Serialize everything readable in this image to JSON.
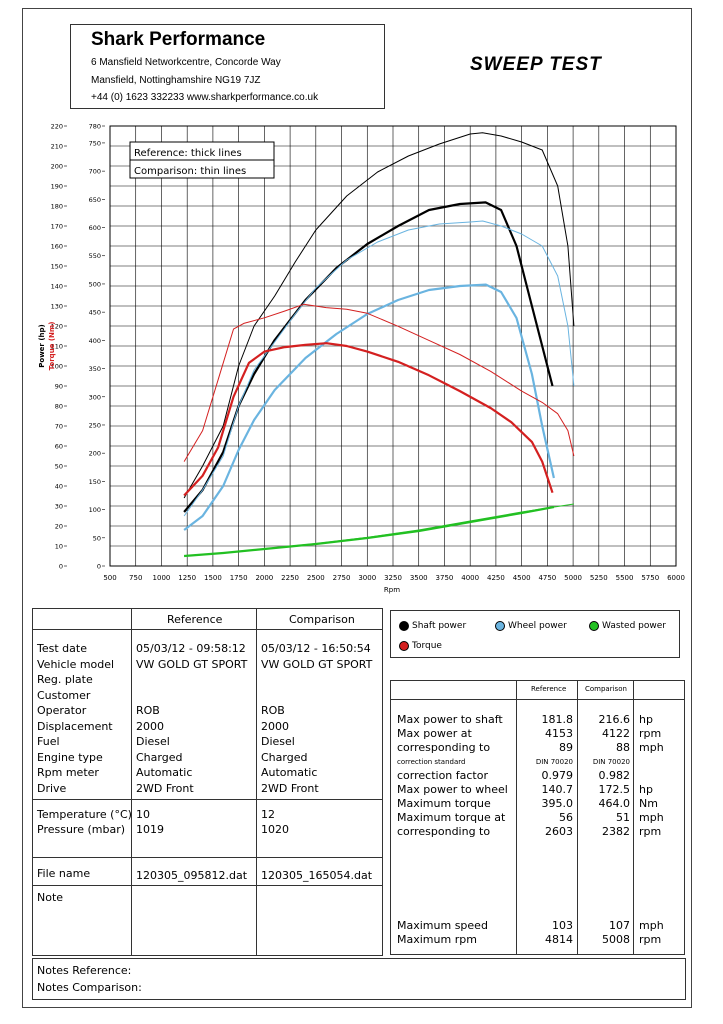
{
  "header": {
    "company": "Shark Performance",
    "address1": "6 Mansfield Networkcentre, Concorde Way",
    "address2": "Mansfield, Nottinghamshire NG19 7JZ",
    "contact": "+44 (0) 1623 332233 www.sharkperformance.co.uk",
    "report_title": "SWEEP TEST"
  },
  "chart_note": {
    "reference": "Reference: thick lines",
    "comparison": "Comparison: thin lines"
  },
  "chart_data": {
    "type": "line",
    "xlabel": "Rpm",
    "ylabel_power": "Power (hp)",
    "ylabel_torque": "Torque (Nm)",
    "xlim": [
      500,
      6000
    ],
    "power_ylim": [
      0,
      220
    ],
    "torque_ylim": [
      0,
      780
    ],
    "x_ticks": [
      500,
      750,
      1000,
      1250,
      1500,
      1750,
      2000,
      2250,
      2500,
      2750,
      3000,
      3250,
      3500,
      3750,
      4000,
      4250,
      4500,
      4750,
      5000,
      5250,
      5500,
      5750,
      6000
    ],
    "power_ticks": [
      0,
      10,
      20,
      30,
      40,
      50,
      60,
      70,
      80,
      90,
      100,
      110,
      120,
      130,
      140,
      150,
      160,
      170,
      180,
      190,
      200,
      210,
      220
    ],
    "torque_ticks": [
      0,
      50,
      100,
      150,
      200,
      250,
      300,
      350,
      400,
      450,
      500,
      550,
      600,
      650,
      700,
      750,
      780
    ],
    "series": [
      {
        "name": "Shaft power",
        "axis": "power",
        "style": "thick",
        "color": "#000000",
        "x": [
          1220,
          1400,
          1600,
          1750,
          1900,
          2100,
          2400,
          2700,
          3000,
          3300,
          3600,
          3900,
          4150,
          4300,
          4450,
          4600,
          4700,
          4800
        ],
        "y": [
          27,
          38,
          57,
          80,
          96,
          113,
          133,
          149,
          161,
          170,
          178,
          181,
          181.8,
          178,
          160,
          130,
          110,
          90
        ]
      },
      {
        "name": "Shaft power",
        "axis": "power",
        "style": "thin",
        "color": "#000000",
        "x": [
          1220,
          1400,
          1600,
          1750,
          1900,
          2100,
          2300,
          2500,
          2800,
          3100,
          3400,
          3700,
          4000,
          4120,
          4300,
          4500,
          4700,
          4850,
          4950,
          5008
        ],
        "y": [
          34,
          50,
          70,
          100,
          120,
          135,
          152,
          168,
          185,
          197,
          205,
          211,
          216,
          216.6,
          215,
          212,
          208,
          190,
          160,
          120
        ]
      },
      {
        "name": "Wheel power",
        "axis": "power",
        "style": "thick",
        "color": "#6ab4e0",
        "x": [
          1220,
          1400,
          1600,
          1750,
          1900,
          2100,
          2400,
          2700,
          3000,
          3300,
          3600,
          3900,
          4153,
          4300,
          4450,
          4600,
          4700,
          4814
        ],
        "y": [
          18,
          25,
          40,
          58,
          73,
          88,
          104,
          116,
          126,
          133,
          138,
          140,
          140.7,
          137,
          124,
          96,
          70,
          44
        ]
      },
      {
        "name": "Wheel power",
        "axis": "power",
        "style": "thin",
        "color": "#6ab4e0",
        "x": [
          1220,
          1400,
          1600,
          1750,
          1900,
          2100,
          2300,
          2500,
          2800,
          3100,
          3400,
          3700,
          4000,
          4122,
          4300,
          4500,
          4700,
          4850,
          4950,
          5008
        ],
        "y": [
          25,
          38,
          55,
          80,
          98,
          112,
          126,
          139,
          153,
          162,
          168,
          171,
          172,
          172.5,
          170,
          166,
          160,
          145,
          120,
          90
        ]
      },
      {
        "name": "Wasted power",
        "axis": "power",
        "style": "thick",
        "color": "#22c022",
        "x": [
          1220,
          1600,
          2000,
          2500,
          3000,
          3500,
          4000,
          4500,
          4814
        ],
        "y": [
          5,
          6.5,
          8.5,
          11,
          14,
          17.5,
          22,
          26.5,
          29.5
        ]
      },
      {
        "name": "Wasted power",
        "axis": "power",
        "style": "thin",
        "color": "#22c022",
        "x": [
          1220,
          1600,
          2000,
          2500,
          3000,
          3500,
          4000,
          4500,
          5008
        ],
        "y": [
          5,
          6.5,
          8.6,
          11.2,
          14.3,
          18,
          22.5,
          27,
          31
        ]
      },
      {
        "name": "Torque",
        "axis": "torque",
        "style": "thick",
        "color": "#d42020",
        "x": [
          1220,
          1400,
          1550,
          1700,
          1850,
          2000,
          2200,
          2400,
          2603,
          2800,
          3000,
          3300,
          3600,
          3900,
          4200,
          4400,
          4600,
          4700,
          4800
        ],
        "y": [
          125,
          160,
          210,
          300,
          360,
          380,
          388,
          392,
          395,
          390,
          380,
          362,
          338,
          310,
          280,
          255,
          220,
          185,
          130
        ]
      },
      {
        "name": "Torque",
        "axis": "torque",
        "style": "thin",
        "color": "#d42020",
        "x": [
          1220,
          1400,
          1550,
          1700,
          1800,
          2000,
          2200,
          2382,
          2600,
          2800,
          3000,
          3300,
          3600,
          3900,
          4200,
          4500,
          4700,
          4850,
          4950,
          5008
        ],
        "y": [
          185,
          240,
          330,
          420,
          430,
          440,
          452,
          464,
          458,
          455,
          448,
          425,
          400,
          375,
          345,
          310,
          290,
          270,
          240,
          195
        ]
      }
    ]
  },
  "legend": {
    "shaft": "Shaft power",
    "wheel": "Wheel power",
    "wasted": "Wasted power",
    "torque": "Torque",
    "colors": {
      "shaft": "#000000",
      "wheel": "#6ab4e0",
      "wasted": "#22c022",
      "torque": "#d42020"
    }
  },
  "info_table": {
    "col_reference": "Reference",
    "col_comparison": "Comparison",
    "labels": [
      "Test date",
      "Vehicle model",
      "Reg. plate",
      "Customer",
      "Operator",
      "Displacement",
      "Fuel",
      "Engine type",
      "Rpm meter",
      "Drive"
    ],
    "reference": [
      "05/03/12 - 09:58:12",
      "VW GOLD GT SPORT",
      "",
      "",
      "ROB",
      "2000",
      "Diesel",
      "Charged",
      "Automatic",
      "2WD Front"
    ],
    "comparison": [
      "05/03/12 - 16:50:54",
      "VW GOLD GT SPORT",
      "",
      "",
      "ROB",
      "2000",
      "Diesel",
      "Charged",
      "Automatic",
      "2WD Front"
    ],
    "env_labels": [
      "Temperature (°C)",
      "Pressure (mbar)"
    ],
    "env_reference": [
      "10",
      "1019"
    ],
    "env_comparison": [
      "12",
      "1020"
    ],
    "file_label": "File name",
    "file_reference": "120305_095812.dat",
    "file_comparison": "120305_165054.dat",
    "note_label": "Note"
  },
  "results": {
    "col_reference": "Reference",
    "col_comparison": "Comparison",
    "rows": [
      {
        "label": "Max power to shaft",
        "ref": "181.8",
        "cmp": "216.6",
        "unit": "hp"
      },
      {
        "label": "Max power at",
        "ref": "4153",
        "cmp": "4122",
        "unit": "rpm"
      },
      {
        "label": "corresponding to",
        "ref": "89",
        "cmp": "88",
        "unit": "mph"
      },
      {
        "label": "correction standard",
        "ref": "DIN 70020",
        "cmp": "DIN 70020",
        "unit": "",
        "small": true
      },
      {
        "label": "correction factor",
        "ref": "0.979",
        "cmp": "0.982",
        "unit": ""
      },
      {
        "label": "Max power to wheel",
        "ref": "140.7",
        "cmp": "172.5",
        "unit": "hp"
      },
      {
        "label": "Maximum torque",
        "ref": "395.0",
        "cmp": "464.0",
        "unit": "Nm"
      },
      {
        "label": "Maximum torque at",
        "ref": "56",
        "cmp": "51",
        "unit": "mph"
      },
      {
        "label": "corresponding to",
        "ref": "2603",
        "cmp": "2382",
        "unit": "rpm"
      }
    ],
    "rows2": [
      {
        "label": "Maximum speed",
        "ref": "103",
        "cmp": "107",
        "unit": "mph"
      },
      {
        "label": "Maximum rpm",
        "ref": "4814",
        "cmp": "5008",
        "unit": "rpm"
      }
    ]
  },
  "notes": {
    "reference": "Notes Reference:",
    "comparison": "Notes Comparison:"
  }
}
